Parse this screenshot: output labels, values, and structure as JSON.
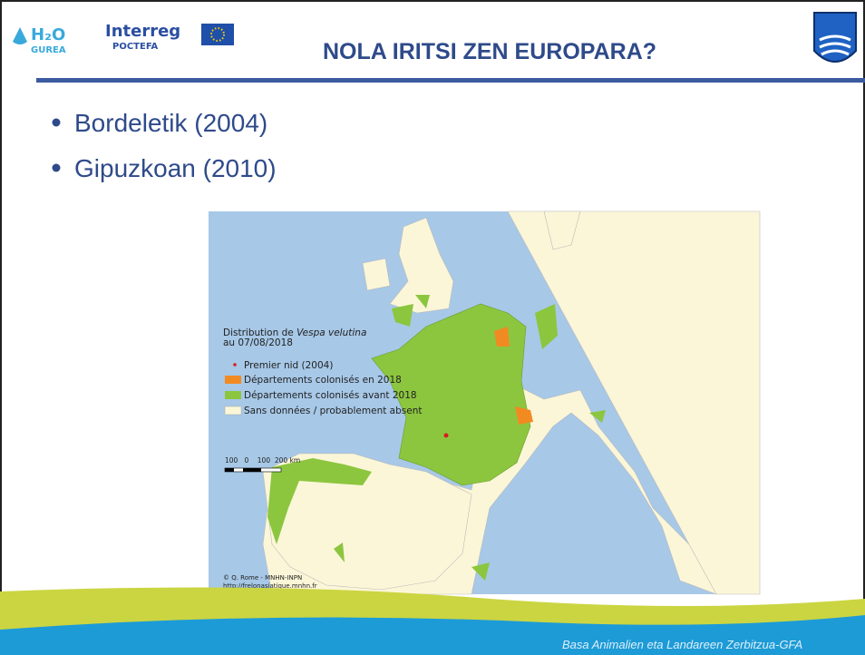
{
  "header": {
    "logo_left": {
      "line1": "H₂O",
      "line2": "GUREA"
    },
    "logo_interreg": {
      "line1": "Interreg",
      "line2": "POCTEFA"
    },
    "title": "NOLA IRITSI ZEN EUROPARA?"
  },
  "bullets": [
    "Bordeletik (2004)",
    "Gipuzkoan (2010)"
  ],
  "map": {
    "legend": {
      "title_prefix": "Distribution de",
      "title_species": "Vespa velutina",
      "title_date": "au 07/08/2018",
      "items": [
        "Premier nid (2004)",
        "Départements colonisés en 2018",
        "Départements colonisés avant 2018",
        "Sans données / probablement absent"
      ]
    },
    "scale": "100   0    100  200 km",
    "credits": [
      "© Q. Rome - MNHN-INPN",
      "http://frelonasiatique.mnhn.fr"
    ]
  },
  "footer": {
    "text": "Basa Animalien eta Landareen Zerbitzua-GFA"
  }
}
